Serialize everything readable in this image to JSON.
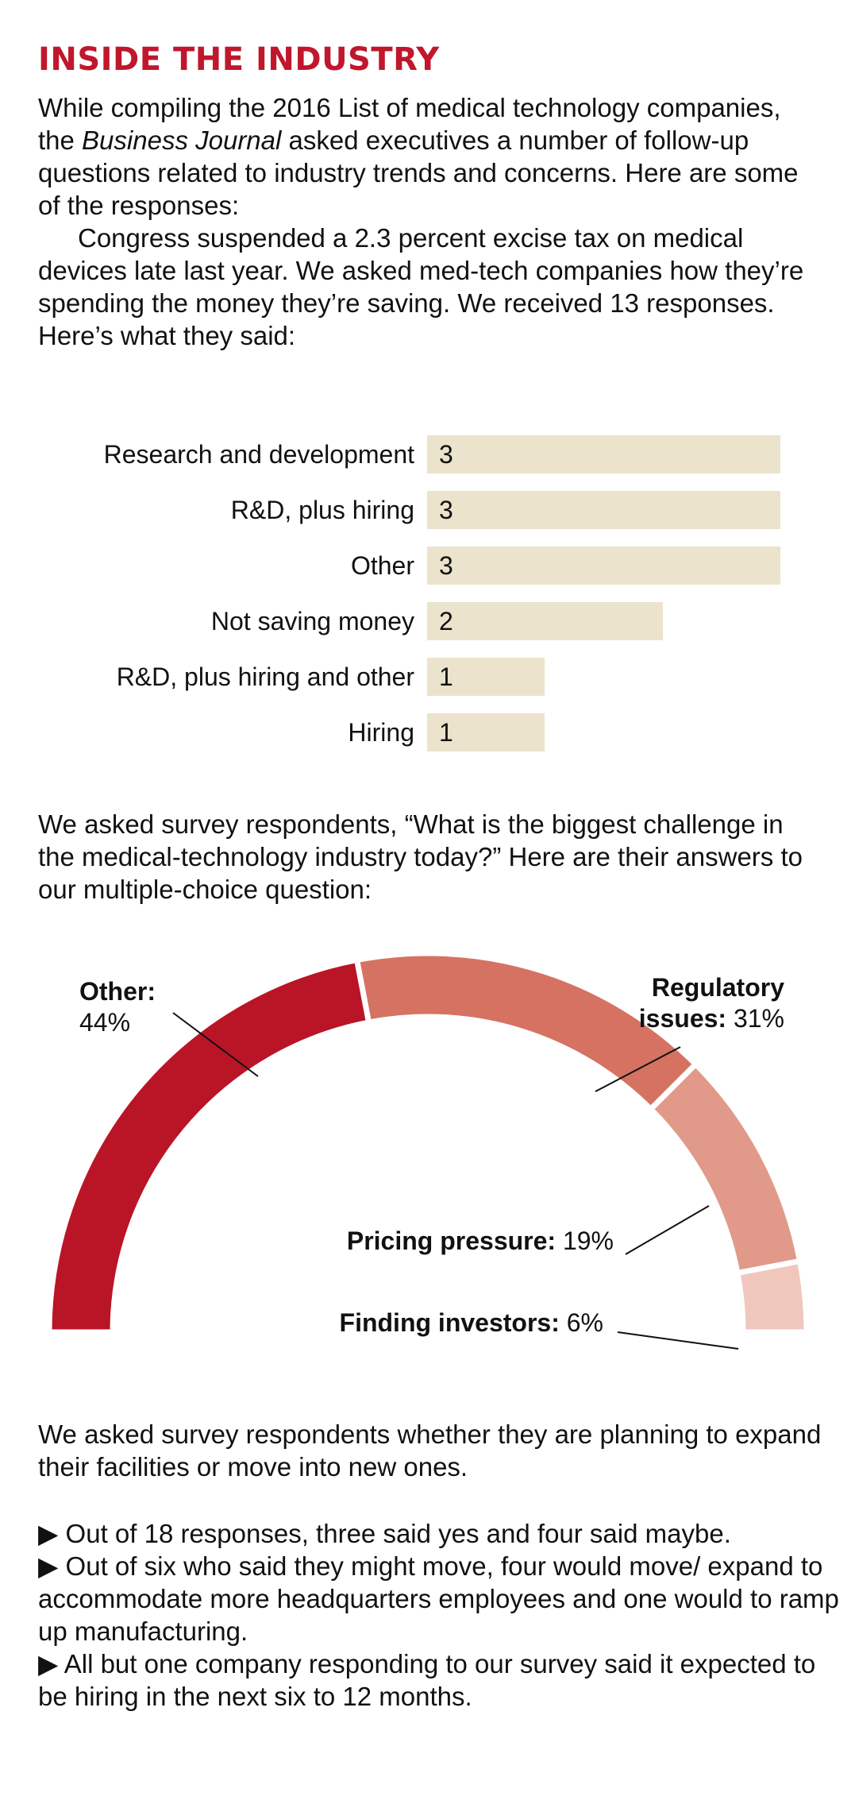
{
  "headline": "INSIDE THE INDUSTRY",
  "intro": {
    "p1_before": "While compiling the 2016 List of medical technology companies, the ",
    "p1_italic": "Business Journal",
    "p1_after": " asked executives a number of follow-up questions related to industry trends and concerns. Here are some of the responses:",
    "p2": "Congress suspended a 2.3 percent excise tax on medical devices late last year. We asked med-tech companies how they’re spending the money they’re saving. We received 13 responses. Here’s what they said:"
  },
  "question2": "We asked survey respondents, “What is the biggest challenge in the medical-technology industry today?” Here are their answers to our multiple-choice question:",
  "question3": "We asked survey respondents whether they are planning to expand their facilities or move into new ones.",
  "bullets": [
    "▶  Out of 18 responses, three said yes and four said maybe.",
    "▶ Out of six who said they might move, four would move/ expand to accommodate more headquarters employees and one would to ramp up manufacturing.",
    "▶ All but one company responding to our survey said it expected to be hiring in the next six to 12 months."
  ],
  "colors": {
    "accent": "#c0172c",
    "bar": "#ebe3cc",
    "slice_other": "#ba1427",
    "slice_regulatory": "#d57262",
    "slice_pricing": "#e19a89",
    "slice_investors": "#f0c7bc"
  },
  "chart_data": [
    {
      "type": "bar",
      "orientation": "horizontal",
      "title": "",
      "categories": [
        "Research and development",
        "R&D, plus hiring",
        "Other",
        "Not saving money",
        "R&D, plus hiring and other",
        "Hiring"
      ],
      "values": [
        3,
        3,
        3,
        2,
        1,
        1
      ],
      "value_labels": [
        "3",
        "3",
        "3",
        "2",
        "1",
        "1"
      ],
      "xlim": [
        0,
        3
      ]
    },
    {
      "type": "pie",
      "variant": "half-donut",
      "title": "",
      "slices": [
        {
          "label": "Other:",
          "value": 44,
          "value_label": "44%"
        },
        {
          "label": "Regulatory issues:",
          "label_line1": "Regulatory",
          "label_line2": "issues:",
          "value": 31,
          "value_label": "31%"
        },
        {
          "label": "Pricing pressure:",
          "value": 19,
          "value_label": "19%"
        },
        {
          "label": "Finding investors:",
          "value": 6,
          "value_label": "6%"
        }
      ]
    }
  ]
}
